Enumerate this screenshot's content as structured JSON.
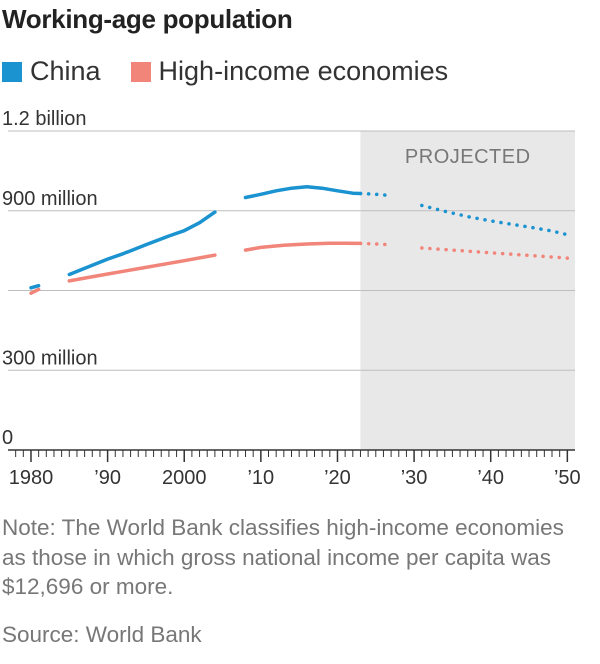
{
  "title": "Working-age population",
  "note": "Note: The World Bank classifies high-income economies as those in which gross national income per capita was $12,696 or more.",
  "source": "Source: World Bank",
  "chart_data": {
    "type": "line",
    "projected_label": "PROJECTED",
    "projected_from": 2023,
    "xlim": [
      1977,
      2051
    ],
    "ylim": [
      0,
      1200
    ],
    "y_ticks": [
      {
        "value": 1200,
        "label": "1.2 billion"
      },
      {
        "value": 900,
        "label": "900 million"
      },
      {
        "value": 600,
        "label": ""
      },
      {
        "value": 300,
        "label": "300 million"
      },
      {
        "value": 0,
        "label": "0"
      }
    ],
    "x_ticks": [
      {
        "value": 1980,
        "label": "1980"
      },
      {
        "value": 1990,
        "label": "’90"
      },
      {
        "value": 2000,
        "label": "2000"
      },
      {
        "value": 2010,
        "label": "’10"
      },
      {
        "value": 2020,
        "label": "’20"
      },
      {
        "value": 2030,
        "label": "’30"
      },
      {
        "value": 2040,
        "label": "’40"
      },
      {
        "value": 2050,
        "label": "’50"
      }
    ],
    "series": [
      {
        "name": "China",
        "color": "#1a93d0",
        "segments": [
          {
            "style": "solid",
            "points": [
              [
                1980,
                610
              ],
              [
                1981,
                618
              ]
            ]
          },
          {
            "style": "solid",
            "points": [
              [
                1985,
                660
              ],
              [
                1988,
                695
              ],
              [
                1990,
                718
              ],
              [
                1992,
                738
              ],
              [
                1995,
                772
              ],
              [
                1998,
                805
              ],
              [
                2000,
                825
              ],
              [
                2002,
                855
              ],
              [
                2004,
                895
              ]
            ]
          },
          {
            "style": "solid",
            "points": [
              [
                2008,
                950
              ],
              [
                2010,
                962
              ],
              [
                2012,
                975
              ],
              [
                2014,
                985
              ],
              [
                2016,
                990
              ],
              [
                2018,
                985
              ],
              [
                2020,
                975
              ],
              [
                2022,
                966
              ],
              [
                2023,
                965
              ]
            ]
          },
          {
            "style": "dotted",
            "points": [
              [
                2023,
                965
              ],
              [
                2025,
                962
              ],
              [
                2027,
                957
              ]
            ]
          },
          {
            "style": "dotted",
            "points": [
              [
                2031,
                920
              ],
              [
                2034,
                898
              ],
              [
                2037,
                878
              ],
              [
                2040,
                862
              ],
              [
                2043,
                848
              ],
              [
                2046,
                834
              ],
              [
                2048,
                824
              ],
              [
                2050,
                810
              ]
            ]
          }
        ]
      },
      {
        "name": "High-income economies",
        "color": "#f2857a",
        "segments": [
          {
            "style": "solid",
            "points": [
              [
                1980,
                590
              ],
              [
                1981,
                604
              ]
            ]
          },
          {
            "style": "solid",
            "points": [
              [
                1985,
                636
              ],
              [
                1990,
                662
              ],
              [
                1995,
                687
              ],
              [
                2000,
                712
              ],
              [
                2004,
                733
              ]
            ]
          },
          {
            "style": "solid",
            "points": [
              [
                2008,
                752
              ],
              [
                2010,
                762
              ],
              [
                2013,
                770
              ],
              [
                2016,
                775
              ],
              [
                2019,
                778
              ],
              [
                2021,
                778
              ],
              [
                2023,
                777
              ]
            ]
          },
          {
            "style": "dotted",
            "points": [
              [
                2023,
                777
              ],
              [
                2025,
                775
              ],
              [
                2027,
                772
              ]
            ]
          },
          {
            "style": "dotted",
            "points": [
              [
                2031,
                760
              ],
              [
                2035,
                752
              ],
              [
                2040,
                742
              ],
              [
                2045,
                732
              ],
              [
                2050,
                722
              ]
            ]
          }
        ]
      }
    ]
  }
}
